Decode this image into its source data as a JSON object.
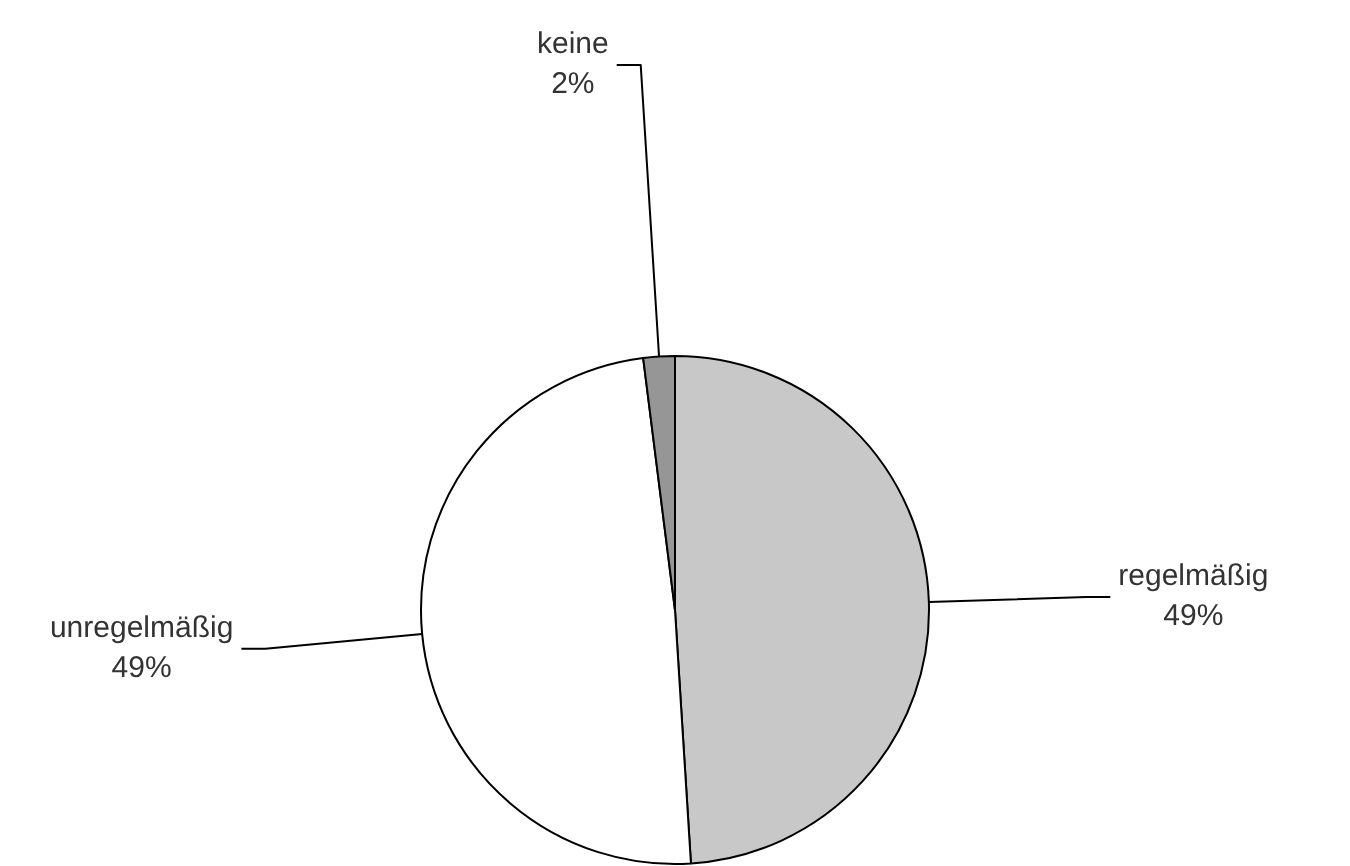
{
  "chart_data": {
    "type": "pie",
    "categories": [
      "regelmäßig",
      "unregelmäßig",
      "keine"
    ],
    "values": [
      49,
      49,
      2
    ],
    "colors": [
      "#c8c8c8",
      "#ffffff",
      "#969696"
    ],
    "value_labels": [
      "49%",
      "49%",
      "2%"
    ],
    "legend": false
  }
}
